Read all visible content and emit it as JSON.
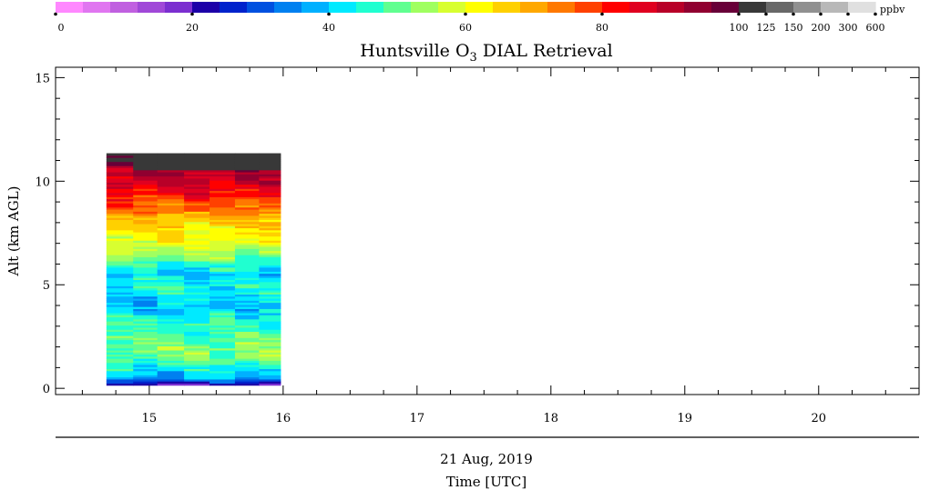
{
  "chart_data": {
    "type": "heatmap",
    "title": "Huntsville O₃ DIAL Retrieval",
    "title_parts": {
      "before": "Huntsville O",
      "subscript": "3",
      "after": " DIAL Retrieval"
    },
    "xlabel": "Time [UTC]",
    "date_label": "21 Aug, 2019",
    "ylabel": "Alt (km AGL)",
    "xlim": [
      14.3,
      20.75
    ],
    "ylim": [
      -0.3,
      15.5
    ],
    "x_ticks": [
      15,
      16,
      17,
      18,
      19,
      20
    ],
    "y_ticks": [
      0,
      5,
      10,
      15
    ],
    "colorbar": {
      "unit": "ppbv",
      "colors": [
        "#ff88ff",
        "#e076f0",
        "#c060e0",
        "#a048d8",
        "#7b2fd0",
        "#1c00a8",
        "#0022cc",
        "#0050e0",
        "#0080f0",
        "#00b0ff",
        "#00eaff",
        "#20ffd0",
        "#60ff90",
        "#a0ff60",
        "#d8ff30",
        "#ffff00",
        "#ffd000",
        "#ffa800",
        "#ff7800",
        "#ff4000",
        "#ff0000",
        "#e00020",
        "#b80028",
        "#900030",
        "#680038",
        "#383838",
        "#686868",
        "#909090",
        "#b8b8b8",
        "#e0e0e0"
      ],
      "tick_labels": [
        "0",
        "20",
        "40",
        "60",
        "80",
        "100",
        "125",
        "150",
        "200",
        "300",
        "600"
      ],
      "tick_bins": [
        0,
        5,
        10,
        15,
        20,
        25,
        26,
        27,
        28,
        29,
        30
      ],
      "ppbv_per_bin_below_100": 4
    },
    "time_columns": [
      {
        "x_start": 14.68,
        "x_end": 14.88
      },
      {
        "x_start": 14.88,
        "x_end": 15.06
      },
      {
        "x_start": 15.06,
        "x_end": 15.26
      },
      {
        "x_start": 15.26,
        "x_end": 15.45
      },
      {
        "x_start": 15.45,
        "x_end": 15.64
      },
      {
        "x_start": 15.64,
        "x_end": 15.82
      },
      {
        "x_start": 15.82,
        "x_end": 15.98
      }
    ],
    "profile_altitudes_km": [
      0.2,
      0.5,
      1.0,
      1.5,
      2.0,
      2.5,
      3.0,
      3.5,
      4.0,
      4.5,
      5.0,
      5.5,
      6.0,
      6.5,
      7.0,
      7.5,
      8.0,
      8.5,
      9.0,
      9.5,
      10.0,
      10.5,
      10.9,
      11.2
    ],
    "profile_ozone_ppbv": [
      22,
      38,
      44,
      52,
      52,
      50,
      46,
      44,
      40,
      42,
      45,
      40,
      46,
      54,
      60,
      62,
      66,
      72,
      78,
      84,
      88,
      92,
      98,
      100
    ],
    "altitude_range_km": [
      0.15,
      11.3
    ]
  }
}
